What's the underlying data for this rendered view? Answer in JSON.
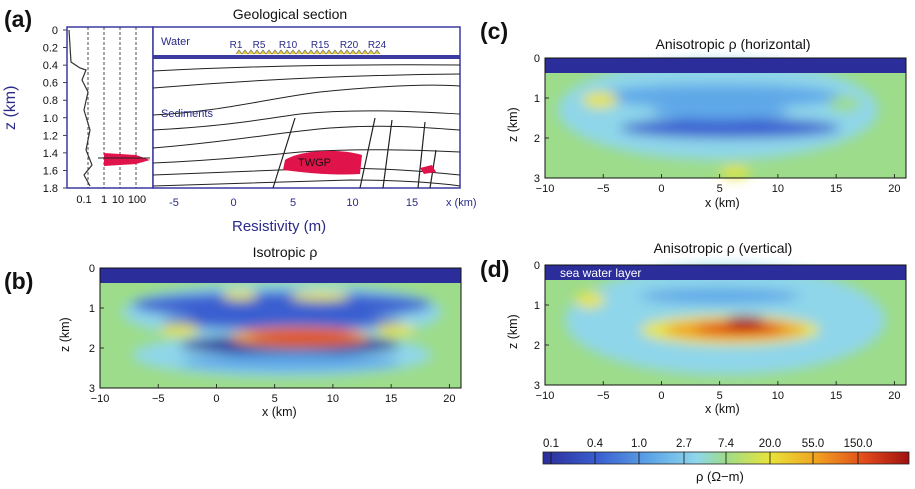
{
  "figure": {
    "panel_labels": [
      "(a)",
      "(b)",
      "(c)",
      "(d)"
    ]
  },
  "panel_a": {
    "title": "Geological section",
    "depth_axis_label": "z (km)",
    "depth_ticks": [
      "0",
      "0.2",
      "0.4",
      "0.6",
      "0.8",
      "1.0",
      "1.2",
      "1.4",
      "1.6",
      "1.8"
    ],
    "log_ticks": [
      "0.1",
      "1",
      "10",
      "100"
    ],
    "resistivity_label": "Resistivity (m)",
    "x_ticks": [
      "-5",
      "0",
      "5",
      "10",
      "15"
    ],
    "x_unit": "x (km)",
    "water_label": "Water",
    "sediments_label": "Sediments",
    "reservoir_label": "TWGP",
    "receivers": [
      "R1",
      "R5",
      "R10",
      "R15",
      "R20",
      "R24"
    ],
    "colors": {
      "frame": "#3a3aa0",
      "text_blue": "#2a2a8a",
      "reservoir": "#e0144a"
    }
  },
  "panel_b": {
    "title": "Isotropic ρ",
    "ylabel": "z (km)",
    "xlabel": "x (km)",
    "y_ticks": [
      "0",
      "1",
      "2",
      "3"
    ],
    "x_ticks": [
      "−10",
      "−5",
      "0",
      "5",
      "10",
      "15",
      "20"
    ]
  },
  "panel_c": {
    "title": "Anisotropic ρ (horizontal)",
    "ylabel": "z (km)",
    "xlabel": "x (km)",
    "y_ticks": [
      "0",
      "1",
      "2",
      "3"
    ],
    "x_ticks": [
      "−10",
      "−5",
      "0",
      "5",
      "10",
      "15",
      "20"
    ]
  },
  "panel_d": {
    "title": "Anisotropic ρ (vertical)",
    "ylabel": "z (km)",
    "xlabel": "x (km)",
    "y_ticks": [
      "0",
      "1",
      "2",
      "3"
    ],
    "x_ticks": [
      "−10",
      "−5",
      "0",
      "5",
      "10",
      "15",
      "20"
    ],
    "annotation": "sea water layer"
  },
  "colorbar": {
    "tick_labels": [
      "0.1",
      "0.4",
      "1.0",
      "2.7",
      "7.4",
      "20.0",
      "55.0",
      "150.0"
    ],
    "label": "ρ (Ω−m)",
    "colors": [
      "#2b2d9a",
      "#3a5fd0",
      "#5fa8e8",
      "#8fd6ea",
      "#9ddc8a",
      "#e8e43a",
      "#f0a020",
      "#e04a1a",
      "#a01010"
    ]
  }
}
